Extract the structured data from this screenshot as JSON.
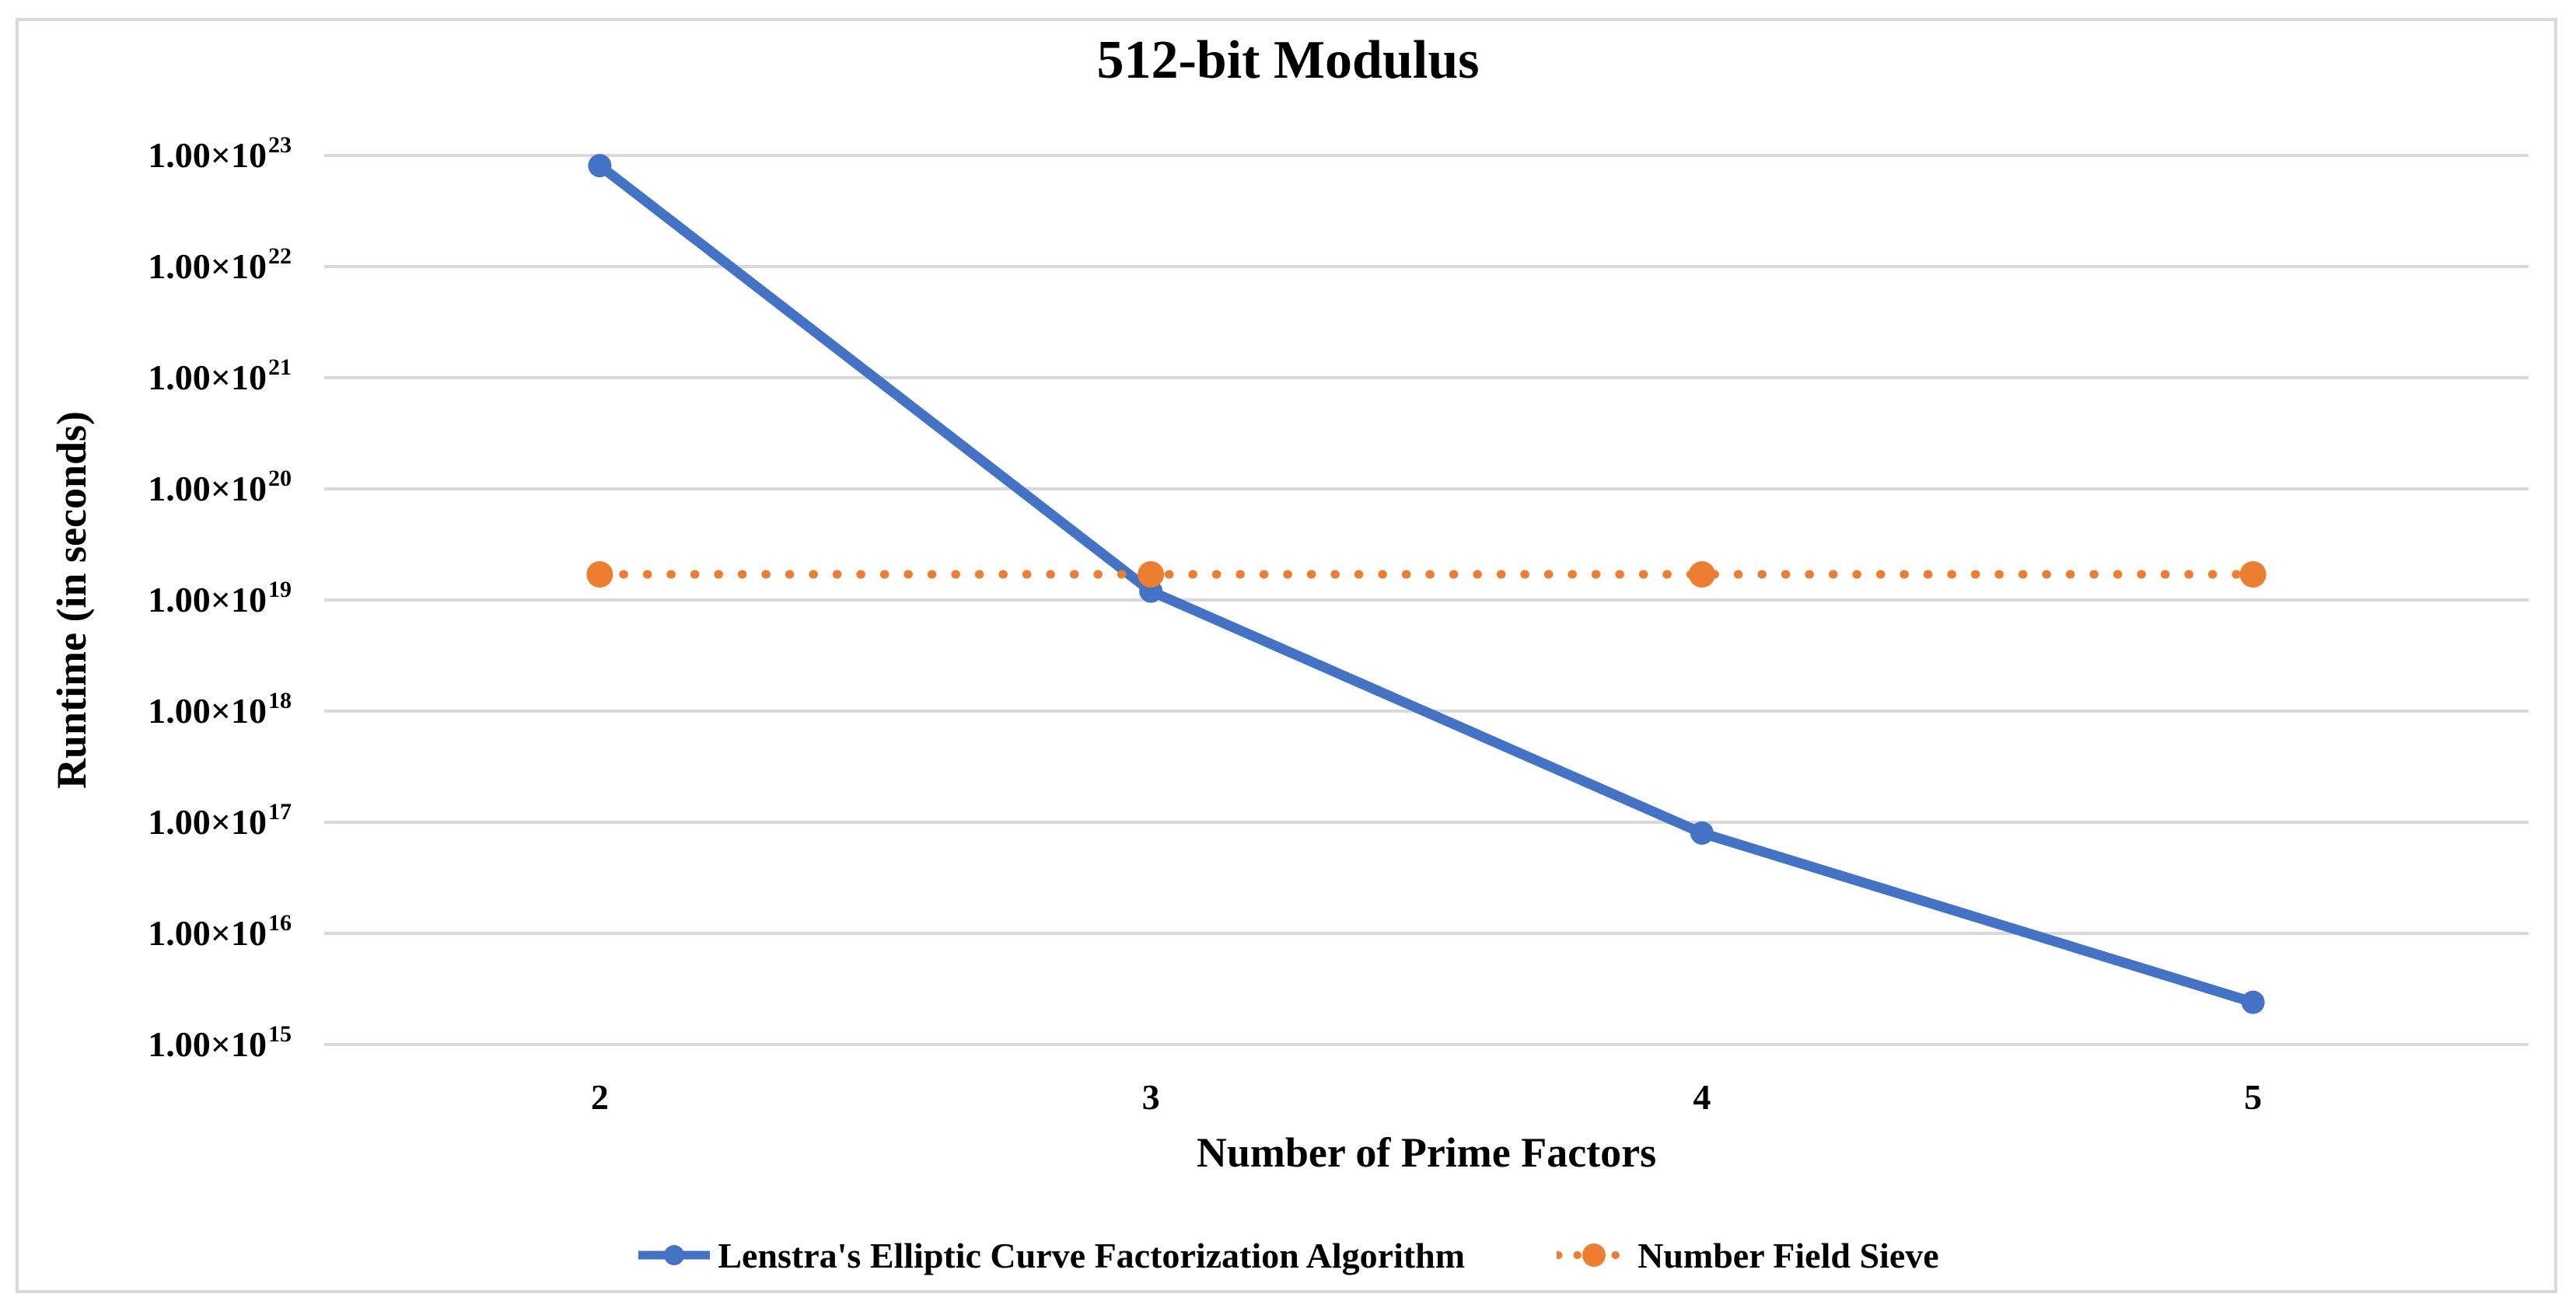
{
  "chart_data": {
    "type": "line",
    "title": "512-bit Modulus",
    "xlabel": "Number of Prime Factors",
    "ylabel": "Runtime (in seconds)",
    "categories": [
      "2",
      "3",
      "4",
      "5"
    ],
    "y_scale": "log",
    "ylim": [
      1000000000000000.0,
      1e+23
    ],
    "y_tick_prefix": "1.00×10",
    "y_tick_exponents": [
      "23",
      "22",
      "21",
      "20",
      "19",
      "18",
      "17",
      "16",
      "15"
    ],
    "grid": true,
    "legend_position": "bottom-center",
    "series": [
      {
        "name": "Lenstra's Elliptic Curve Factorization Algorithm",
        "color": "#4472C4",
        "line_style": "solid",
        "marker": "circle",
        "values": [
          8.1e+22,
          1.2e+19,
          8e+16,
          2400000000000000.0
        ]
      },
      {
        "name": "Number Field Sieve",
        "color": "#ED7D31",
        "line_style": "dotted",
        "marker": "circle",
        "values": [
          1.7e+19,
          1.7e+19,
          1.7e+19,
          1.7e+19
        ]
      }
    ],
    "colors": {
      "grid": "#D9D9D9",
      "axis": "#D9D9D9",
      "frame_border": "#D9D9D9",
      "text": "#000000",
      "background": "#FFFFFF"
    }
  }
}
